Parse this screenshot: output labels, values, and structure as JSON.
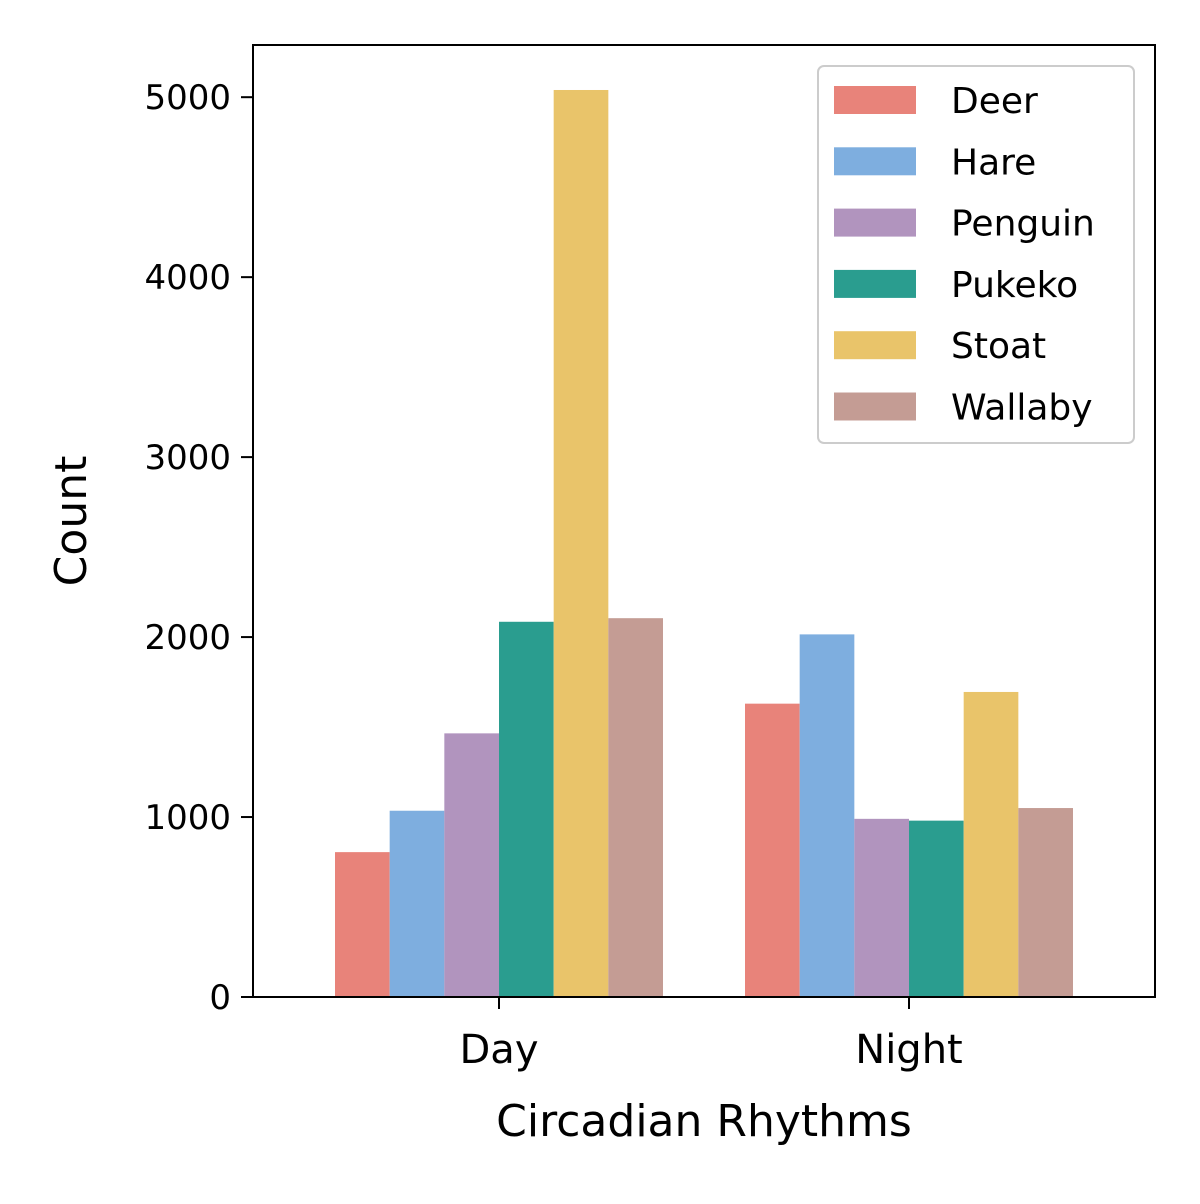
{
  "chart_data": {
    "type": "bar",
    "title": "",
    "xlabel": "Circadian Rhythms",
    "ylabel": "Count",
    "categories": [
      "Day",
      "Night"
    ],
    "ylim": [
      0,
      5290
    ],
    "yticks": [
      0,
      1000,
      2000,
      3000,
      4000,
      5000
    ],
    "yticks_labels": [
      "0",
      "1000",
      "2000",
      "3000",
      "4000",
      "5000"
    ],
    "grid": false,
    "legend_position": "top-right",
    "series": [
      {
        "name": "Deer",
        "color": "#E8837A",
        "values": [
          805,
          1630
        ]
      },
      {
        "name": "Hare",
        "color": "#7EAEDF",
        "values": [
          1035,
          2015
        ]
      },
      {
        "name": "Penguin",
        "color": "#B194BE",
        "values": [
          1465,
          990
        ]
      },
      {
        "name": "Pukeko",
        "color": "#2A9D8F",
        "values": [
          2085,
          980
        ]
      },
      {
        "name": "Stoat",
        "color": "#E9C46A",
        "values": [
          5040,
          1695
        ]
      },
      {
        "name": "Wallaby",
        "color": "#C49C94",
        "values": [
          2105,
          1050
        ]
      }
    ]
  }
}
